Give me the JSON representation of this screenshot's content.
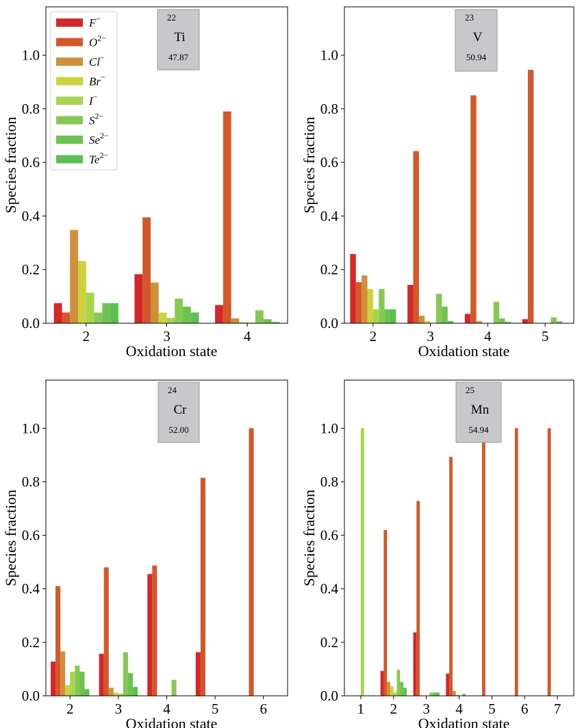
{
  "legend": {
    "entries": [
      {
        "base": "F",
        "sup": "−",
        "color": "#d62728"
      },
      {
        "base": "O",
        "sup": "2−",
        "color": "#d4572a"
      },
      {
        "base": "Cl",
        "sup": "−",
        "color": "#d18f3b"
      },
      {
        "base": "Br",
        "sup": "−",
        "color": "#cfd23f"
      },
      {
        "base": "I",
        "sup": "−",
        "color": "#a6d64f"
      },
      {
        "base": "S",
        "sup": "2−",
        "color": "#86c952"
      },
      {
        "base": "Se",
        "sup": "2−",
        "color": "#6cc34f"
      },
      {
        "base": "Te",
        "sup": "2−",
        "color": "#5cc051"
      }
    ]
  },
  "chart_data": [
    {
      "type": "bar",
      "element": {
        "number": "22",
        "symbol": "Ti",
        "mass": "47.87"
      },
      "xlabel": "Oxidation state",
      "ylabel": "Species fraction",
      "ylim": [
        0,
        1.18
      ],
      "yticks": [
        "0.0",
        "0.2",
        "0.4",
        "0.6",
        "0.8",
        "1.0"
      ],
      "categories": [
        "2",
        "3",
        "4"
      ],
      "series": [
        {
          "values": [
            0.075,
            0.183,
            0.068
          ]
        },
        {
          "values": [
            0.04,
            0.395,
            0.79
          ]
        },
        {
          "values": [
            0.348,
            0.152,
            0.018
          ]
        },
        {
          "values": [
            0.232,
            0.04,
            0.004
          ]
        },
        {
          "values": [
            0.114,
            0.02,
            0.002
          ]
        },
        {
          "values": [
            0.04,
            0.092,
            0.048
          ]
        },
        {
          "values": [
            0.075,
            0.062,
            0.015
          ]
        },
        {
          "values": [
            0.075,
            0.04,
            0.005
          ]
        }
      ]
    },
    {
      "type": "bar",
      "element": {
        "number": "23",
        "symbol": "V",
        "mass": "50.94"
      },
      "xlabel": "Oxidation state",
      "ylabel": "Species fraction",
      "ylim": [
        0,
        1.18
      ],
      "yticks": [
        "0.0",
        "0.2",
        "0.4",
        "0.6",
        "0.8",
        "1.0"
      ],
      "categories": [
        "2",
        "3",
        "4",
        "5"
      ],
      "series": [
        {
          "values": [
            0.258,
            0.143,
            0.035,
            0.015
          ]
        },
        {
          "values": [
            0.153,
            0.642,
            0.85,
            0.945
          ]
        },
        {
          "values": [
            0.178,
            0.028,
            0.008,
            0
          ]
        },
        {
          "values": [
            0.128,
            0.008,
            0,
            0
          ]
        },
        {
          "values": [
            0.052,
            0,
            0,
            0
          ]
        },
        {
          "values": [
            0.128,
            0.11,
            0.08,
            0.022
          ]
        },
        {
          "values": [
            0.052,
            0.062,
            0.018,
            0.007
          ]
        },
        {
          "values": [
            0.052,
            0.008,
            0.005,
            0
          ]
        }
      ]
    },
    {
      "type": "bar",
      "element": {
        "number": "24",
        "symbol": "Cr",
        "mass": "52.00"
      },
      "xlabel": "Oxidation state",
      "ylabel": "Species fraction",
      "ylim": [
        0,
        1.18
      ],
      "yticks": [
        "0.0",
        "0.2",
        "0.4",
        "0.6",
        "0.8",
        "1.0"
      ],
      "categories": [
        "2",
        "3",
        "4",
        "5",
        "6"
      ],
      "series": [
        {
          "values": [
            0.128,
            0.157,
            0.455,
            0.163,
            0
          ]
        },
        {
          "values": [
            0.41,
            0.48,
            0.487,
            0.815,
            1.0
          ]
        },
        {
          "values": [
            0.166,
            0.03,
            0,
            0,
            0
          ]
        },
        {
          "values": [
            0.04,
            0.012,
            0,
            0,
            0
          ]
        },
        {
          "values": [
            0.09,
            0.008,
            0,
            0,
            0
          ]
        },
        {
          "values": [
            0.113,
            0.163,
            0.06,
            0,
            0
          ]
        },
        {
          "values": [
            0.09,
            0.085,
            0,
            0,
            0
          ]
        },
        {
          "values": [
            0.025,
            0.033,
            0,
            0,
            0
          ]
        }
      ]
    },
    {
      "type": "bar",
      "element": {
        "number": "25",
        "symbol": "Mn",
        "mass": "54.94"
      },
      "xlabel": "Oxidation state",
      "ylabel": "Species fraction",
      "ylim": [
        0,
        1.18
      ],
      "yticks": [
        "0.0",
        "0.2",
        "0.4",
        "0.6",
        "0.8",
        "1.0"
      ],
      "categories": [
        "1",
        "2",
        "3",
        "4",
        "5",
        "6",
        "7"
      ],
      "series": [
        {
          "values": [
            0,
            0.093,
            0.237,
            0.083,
            0,
            0,
            0
          ]
        },
        {
          "values": [
            0,
            0.62,
            0.728,
            0.893,
            1.0,
            1.0,
            1.0
          ]
        },
        {
          "values": [
            0,
            0.052,
            0,
            0.018,
            0,
            0,
            0
          ]
        },
        {
          "values": [
            0,
            0.035,
            0,
            0.004,
            0,
            0,
            0
          ]
        },
        {
          "values": [
            1.0,
            0.012,
            0,
            0,
            0,
            0,
            0
          ]
        },
        {
          "values": [
            0,
            0.097,
            0.012,
            0.008,
            0,
            0,
            0
          ]
        },
        {
          "values": [
            0,
            0.052,
            0.012,
            0,
            0,
            0,
            0
          ]
        },
        {
          "values": [
            0,
            0.03,
            0.012,
            0,
            0,
            0,
            0
          ]
        }
      ]
    }
  ]
}
